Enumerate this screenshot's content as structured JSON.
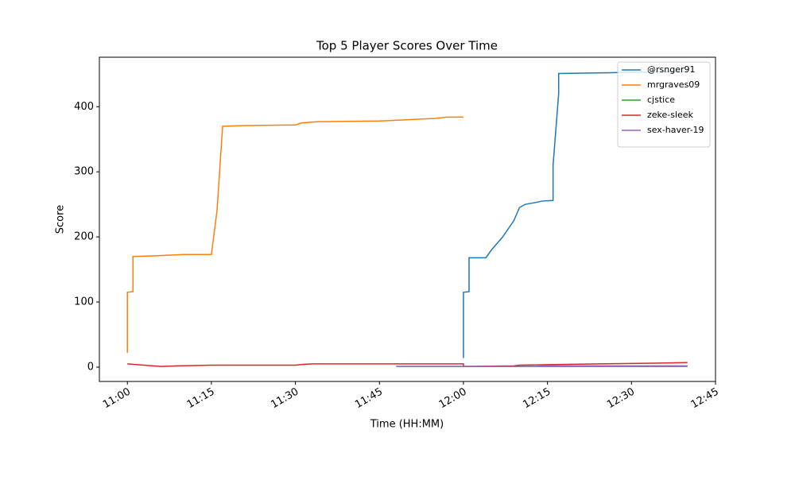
{
  "chart_data": {
    "type": "line",
    "title": "Top 5 Player Scores Over Time",
    "x_label": "Time (HH:MM)",
    "y_label": "Score",
    "xlim": [
      "10:55",
      "12:45"
    ],
    "xticks": [
      "11:00",
      "11:15",
      "11:30",
      "11:45",
      "12:00",
      "12:15",
      "12:30",
      "12:45"
    ],
    "ylim": [
      -22,
      476
    ],
    "yticks": [
      0,
      100,
      200,
      300,
      400
    ],
    "grid": false,
    "legend": "upper right",
    "series": [
      {
        "name": "@rsnger91",
        "color": "#1f77b4",
        "x": [
          "12:00",
          "12:00",
          "12:01",
          "12:01",
          "12:04",
          "12:05",
          "12:07",
          "12:09",
          "12:10",
          "12:11",
          "12:13",
          "12:14",
          "12:16",
          "12:16",
          "12:17",
          "12:17",
          "12:25",
          "12:30",
          "12:40"
        ],
        "values": [
          14,
          115,
          116,
          168,
          168,
          180,
          200,
          225,
          245,
          250,
          253,
          255,
          256,
          310,
          420,
          451,
          452,
          453,
          454
        ]
      },
      {
        "name": "mrgraves09",
        "color": "#ff7f0e",
        "x": [
          "11:00",
          "11:00",
          "11:01",
          "11:01",
          "11:05",
          "11:10",
          "11:15",
          "11:16",
          "11:17",
          "11:21",
          "11:30",
          "11:31",
          "11:34",
          "11:45",
          "11:50",
          "11:55",
          "11:57",
          "12:00"
        ],
        "values": [
          22,
          115,
          116,
          170,
          171,
          173,
          173,
          240,
          370,
          371,
          372,
          375,
          377,
          378,
          380,
          382,
          384,
          384
        ]
      },
      {
        "name": "cjstice",
        "color": "#2ca02c",
        "x": [
          "11:48",
          "12:40"
        ],
        "values": [
          1,
          1
        ]
      },
      {
        "name": "zeke-sleek",
        "color": "#d62728",
        "x": [
          "11:00",
          "11:06",
          "11:09",
          "11:15",
          "11:30",
          "11:31",
          "11:33",
          "12:00",
          "12:00",
          "12:09",
          "12:10",
          "12:16",
          "12:24",
          "12:34",
          "12:40"
        ],
        "values": [
          5,
          1,
          2,
          3,
          3,
          4,
          5,
          5,
          1,
          2,
          3,
          4,
          5,
          6,
          7
        ]
      },
      {
        "name": "sex-haver-19",
        "color": "#9467bd",
        "x": [
          "11:48",
          "12:13",
          "12:14",
          "12:40"
        ],
        "values": [
          1,
          1,
          2,
          2
        ]
      }
    ]
  }
}
